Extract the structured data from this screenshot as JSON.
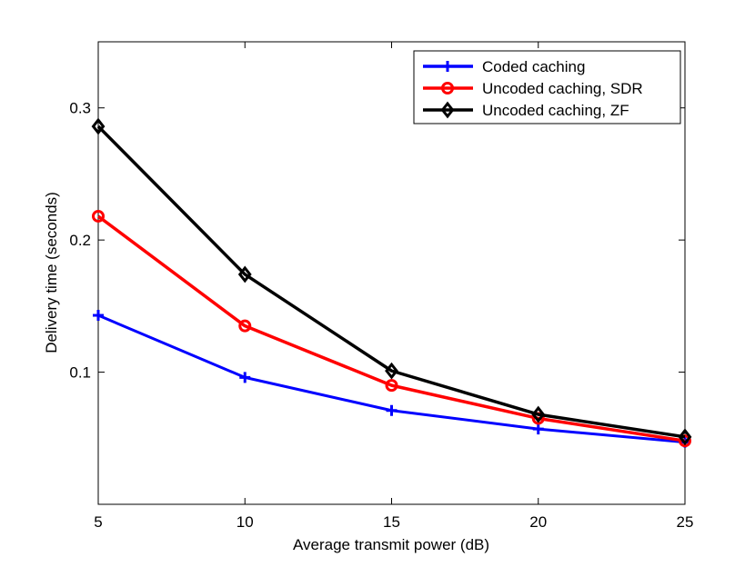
{
  "chart_data": {
    "type": "line",
    "title": "",
    "xlabel": "Average transmit power (dB)",
    "ylabel": "Delivery time (seconds)",
    "x": [
      5,
      10,
      15,
      20,
      25
    ],
    "xlim": [
      5,
      25
    ],
    "ylim": [
      0,
      0.35
    ],
    "xticks": [
      "5",
      "10",
      "15",
      "20",
      "25"
    ],
    "yticks": [
      "0.1",
      "0.2",
      "0.3"
    ],
    "ytick_values": [
      0.1,
      0.2,
      0.3
    ],
    "grid": false,
    "legend_position": "top-right",
    "series": [
      {
        "name": "Coded caching",
        "values": [
          0.143,
          0.096,
          0.071,
          0.057,
          0.047
        ],
        "color": "#0000ff",
        "marker": "plus"
      },
      {
        "name": "Uncoded caching, SDR",
        "values": [
          0.218,
          0.135,
          0.09,
          0.065,
          0.048
        ],
        "color": "#ff0000",
        "marker": "circle"
      },
      {
        "name": "Uncoded caching, ZF",
        "values": [
          0.286,
          0.174,
          0.101,
          0.068,
          0.051
        ],
        "color": "#000000",
        "marker": "diamond"
      }
    ]
  }
}
